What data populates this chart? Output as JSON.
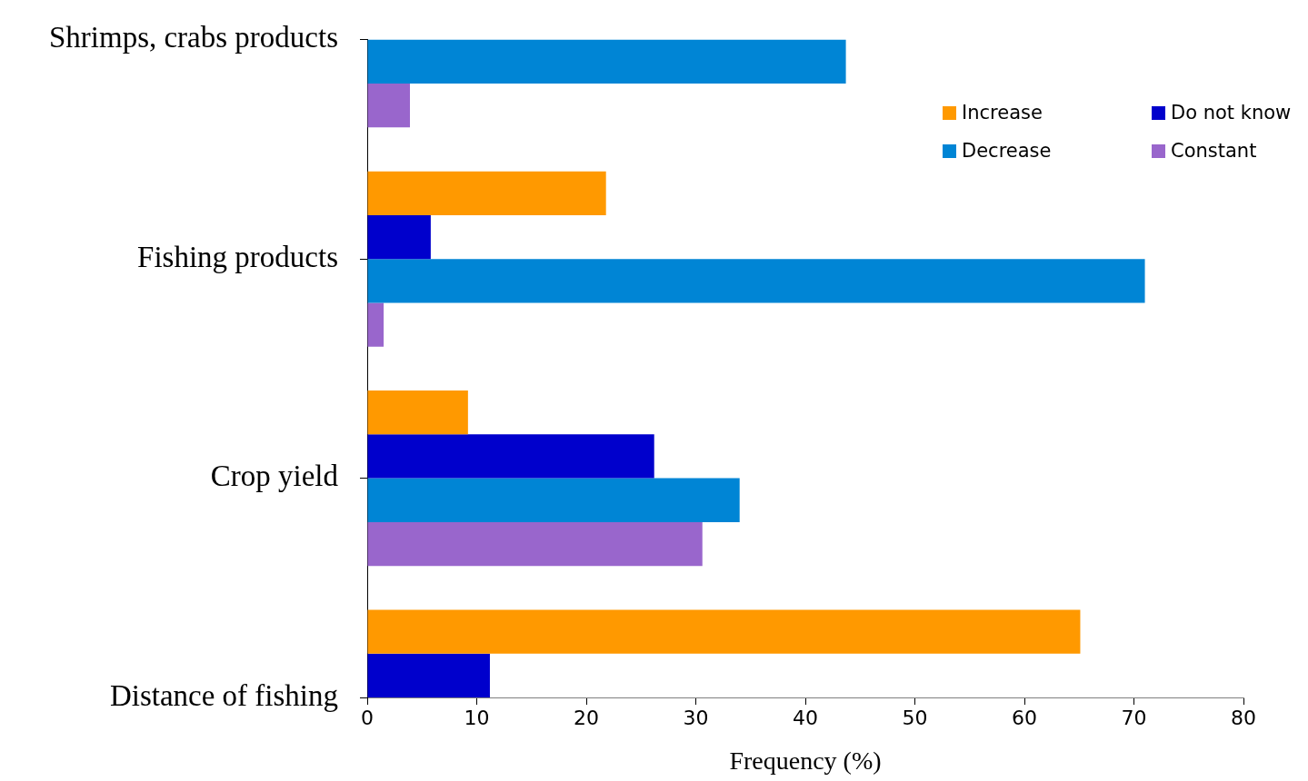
{
  "chart_data": {
    "type": "bar",
    "orientation": "horizontal",
    "xlabel": "Frequency (%)",
    "categories": [
      "Shrimps, crabs products",
      "Fishing products",
      "Crop yield",
      "Distance of fishing"
    ],
    "series": [
      {
        "name": "Increase",
        "color": "#ff9900",
        "values": [
          null,
          21.8,
          9.2,
          65.1
        ]
      },
      {
        "name": "Do not know",
        "color": "#0000cc",
        "values": [
          null,
          5.8,
          26.2,
          11.2
        ]
      },
      {
        "name": "Decrease",
        "color": "#0085d5",
        "values": [
          43.7,
          71.0,
          34.0,
          null
        ]
      },
      {
        "name": "Constant",
        "color": "#9966cc",
        "values": [
          3.9,
          1.5,
          30.6,
          null
        ]
      }
    ],
    "xlim": [
      0,
      80
    ],
    "xticks": [
      0,
      10,
      20,
      30,
      40,
      50,
      60,
      70,
      80
    ],
    "grid": false,
    "legend": "top right"
  }
}
